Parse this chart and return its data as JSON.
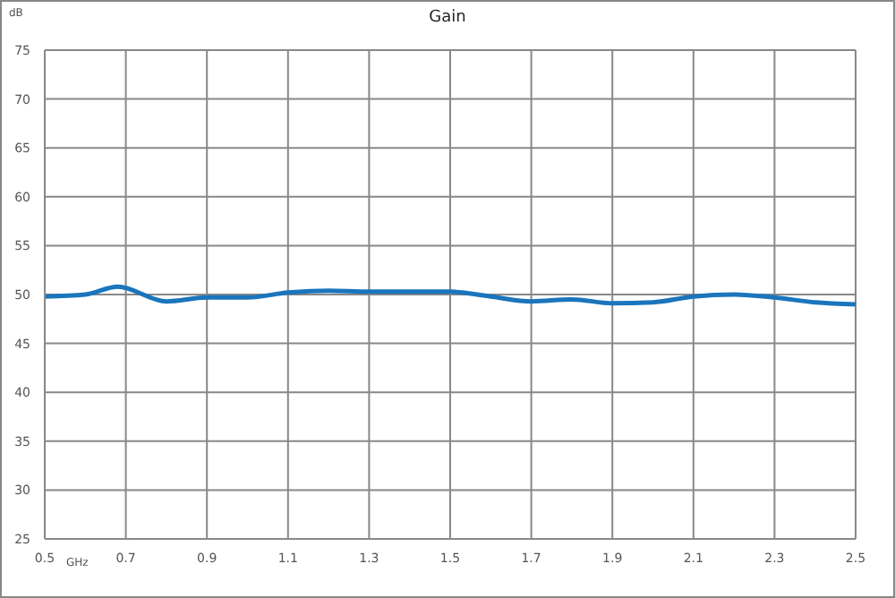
{
  "chart_data": {
    "type": "line",
    "title": "Gain",
    "xlabel": "GHz",
    "ylabel": "dB",
    "x": [
      0.5,
      0.6,
      0.68,
      0.8,
      0.9,
      1.0,
      1.1,
      1.2,
      1.3,
      1.4,
      1.5,
      1.6,
      1.7,
      1.8,
      1.9,
      2.0,
      2.1,
      2.2,
      2.3,
      2.4,
      2.5
    ],
    "series": [
      {
        "color": "#1a75bc",
        "values": [
          49.8,
          50.0,
          50.8,
          49.3,
          49.7,
          49.7,
          50.2,
          50.4,
          50.3,
          50.3,
          50.3,
          49.8,
          49.3,
          49.5,
          49.1,
          49.2,
          49.8,
          50.0,
          49.7,
          49.2,
          49.0
        ]
      }
    ],
    "xlim": [
      0.5,
      2.5
    ],
    "xticks": [
      0.5,
      0.7,
      0.9,
      1.1,
      1.3,
      1.5,
      1.7,
      1.9,
      2.1,
      2.3,
      2.5
    ],
    "ylim": [
      25,
      75
    ],
    "yticks": [
      25,
      30,
      35,
      40,
      45,
      50,
      55,
      60,
      65,
      70,
      75
    ],
    "grid": true,
    "legend": false,
    "marker": "none",
    "line_style": "solid"
  }
}
